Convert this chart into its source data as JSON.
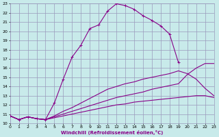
{
  "xlabel": "Windchill (Refroidissement éolien,°C)",
  "xlim": [
    0,
    23
  ],
  "ylim": [
    10,
    23
  ],
  "xticks": [
    0,
    1,
    2,
    3,
    4,
    5,
    6,
    7,
    8,
    9,
    10,
    11,
    12,
    13,
    14,
    15,
    16,
    17,
    18,
    19,
    20,
    21,
    22,
    23
  ],
  "yticks": [
    10,
    11,
    12,
    13,
    14,
    15,
    16,
    17,
    18,
    19,
    20,
    21,
    22,
    23
  ],
  "bg_color": "#c8eaea",
  "grid_color": "#9999bb",
  "line_color": "#880088",
  "lines": [
    {
      "x": [
        0,
        1,
        2,
        3,
        4,
        5,
        6,
        7,
        8,
        9,
        10,
        11,
        12,
        13,
        14,
        15,
        16,
        17,
        18,
        19,
        20,
        21,
        22,
        23
      ],
      "y": [
        10.8,
        10.4,
        10.7,
        10.5,
        10.4,
        12.2,
        14.8,
        17.2,
        18.5,
        20.3,
        20.7,
        22.2,
        23.0,
        22.8,
        22.4,
        21.7,
        21.2,
        20.6,
        19.7,
        16.6,
        null,
        null,
        null,
        null
      ],
      "marker": true,
      "partial_end": 19
    },
    {
      "x": [
        0,
        1,
        2,
        3,
        4,
        5,
        6,
        7,
        8,
        9,
        10,
        11,
        12,
        13,
        14,
        15,
        16,
        17,
        18,
        19,
        20,
        21,
        22,
        23
      ],
      "y": [
        10.8,
        10.4,
        10.7,
        10.5,
        10.4,
        10.8,
        11.3,
        11.7,
        12.2,
        12.7,
        13.2,
        13.7,
        14.0,
        14.3,
        14.5,
        14.8,
        15.0,
        15.2,
        15.4,
        15.7,
        15.4,
        14.8,
        13.8,
        13.0
      ],
      "marker": false
    },
    {
      "x": [
        0,
        1,
        2,
        3,
        4,
        5,
        6,
        7,
        8,
        9,
        10,
        11,
        12,
        13,
        14,
        15,
        16,
        17,
        18,
        19,
        20,
        21,
        22,
        23
      ],
      "y": [
        10.8,
        10.4,
        10.7,
        10.5,
        10.4,
        10.7,
        11.0,
        11.3,
        11.6,
        11.9,
        12.2,
        12.5,
        12.8,
        13.0,
        13.2,
        13.4,
        13.7,
        13.9,
        14.1,
        14.3,
        15.3,
        16.0,
        16.5,
        16.5
      ],
      "marker": false
    },
    {
      "x": [
        0,
        1,
        2,
        3,
        4,
        5,
        6,
        7,
        8,
        9,
        10,
        11,
        12,
        13,
        14,
        15,
        16,
        17,
        18,
        19,
        20,
        21,
        22,
        23
      ],
      "y": [
        10.8,
        10.4,
        10.7,
        10.5,
        10.4,
        10.6,
        10.8,
        11.0,
        11.2,
        11.4,
        11.6,
        11.8,
        12.0,
        12.1,
        12.3,
        12.4,
        12.5,
        12.6,
        12.7,
        12.8,
        12.9,
        13.0,
        13.0,
        12.8
      ],
      "marker": false
    }
  ]
}
